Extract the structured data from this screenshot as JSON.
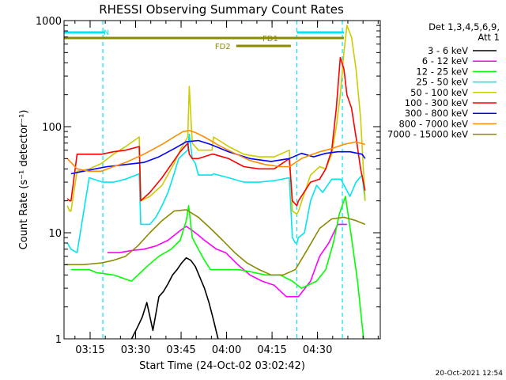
{
  "chart_data": {
    "type": "line",
    "title": "RHESSI Observing Summary Count Rates",
    "xlabel": "Start Time (24-Oct-02 03:02:42)",
    "ylabel": "Count Rate (s⁻¹ detector⁻¹)",
    "yscale": "log",
    "ylim": [
      1,
      1000
    ],
    "xlim_min": [
      3.7,
      108
    ],
    "xticks_min": [
      12.3,
      27.3,
      42.3,
      57.3,
      72.3,
      87.3
    ],
    "xtick_labels": [
      "03:15",
      "03:30",
      "03:45",
      "04:00",
      "04:15",
      "04:30"
    ],
    "yticks": [
      1,
      10,
      100,
      1000
    ],
    "ytick_labels": [
      "1",
      "10",
      "100",
      "1000"
    ],
    "grid": false,
    "legend_header": [
      "Det 1,3,4,5,6,9,",
      "Att 1"
    ],
    "legend_position": "right",
    "footer": "20-Oct-2021 12:54",
    "colors": {
      "night_bar": "#00e5ee",
      "flare_bar": "#8b8b00",
      "dashed": "#00e5ee"
    },
    "markers": {
      "night_label": "N",
      "fd1_label": "FD1",
      "fd2_label": "FD2",
      "night_segments": [
        [
          0,
          17
        ],
        [
          80.5,
          96
        ]
      ],
      "fd1_segment": [
        0,
        96
      ],
      "fd2_segment": [
        60.5,
        78.5
      ],
      "vlines": [
        16.5,
        80.5,
        95.5
      ]
    },
    "series": [
      {
        "name": "3 - 6 keV",
        "color": "#000000",
        "x": [
          26,
          28,
          29.5,
          31,
          33,
          35,
          36.5,
          38,
          39.5,
          41,
          42.5,
          44,
          45.5,
          47,
          48.5,
          50,
          51.5,
          53,
          54.5
        ],
        "y": [
          1,
          1.3,
          1.6,
          2.2,
          1.2,
          2.5,
          2.8,
          3.3,
          4,
          4.5,
          5.2,
          5.8,
          5.5,
          4.8,
          3.8,
          3,
          2.2,
          1.5,
          1
        ]
      },
      {
        "name": "6 - 12 keV",
        "color": "#ff00ff",
        "x": [
          18,
          22,
          26,
          30,
          34,
          38,
          42,
          44,
          46,
          48,
          50,
          54,
          57,
          61,
          65,
          69,
          73,
          77,
          81,
          85,
          88,
          91,
          94,
          97
        ],
        "y": [
          6.5,
          6.5,
          6.8,
          7,
          7.5,
          8.5,
          10.5,
          11.5,
          10.5,
          9.5,
          8.5,
          7,
          6.5,
          5,
          4,
          3.5,
          3.2,
          2.5,
          2.5,
          3.5,
          6,
          8,
          12,
          12
        ]
      },
      {
        "name": "12 - 25 keV",
        "color": "#00ff00",
        "x": [
          6,
          12,
          14.5,
          20,
          26,
          31,
          35,
          39,
          42,
          44,
          44.8,
          46,
          48,
          50,
          52,
          57,
          61,
          65,
          70,
          75,
          79,
          82,
          87,
          90,
          92.5,
          94.5,
          96.5,
          98.5,
          100.5,
          102.5
        ],
        "y": [
          4.5,
          4.5,
          4.2,
          4,
          3.5,
          4.8,
          6,
          7,
          8.5,
          13,
          18,
          9,
          7,
          5.5,
          4.5,
          4.5,
          4.5,
          4.3,
          4,
          4,
          3.5,
          3,
          3.5,
          4.5,
          8,
          15,
          22,
          9,
          3.5,
          1
        ]
      },
      {
        "name": "25 - 50 keV",
        "color": "#00e5ee",
        "x": [
          4.8,
          6,
          8,
          12,
          16.5,
          20,
          24,
          28.5,
          29,
          32,
          34,
          36,
          38,
          40,
          41.5,
          43,
          44.5,
          45,
          46,
          47,
          48,
          52.5,
          53,
          58,
          63,
          68,
          73,
          78,
          79,
          80,
          80.5,
          81,
          83,
          85,
          87,
          89,
          92,
          95,
          98,
          100,
          102,
          103
        ],
        "y": [
          8,
          7,
          6.5,
          33,
          30,
          30,
          32,
          36,
          12,
          12,
          14,
          18,
          24,
          36,
          50,
          55,
          60,
          85,
          50,
          45,
          35,
          35,
          36,
          33,
          30,
          30,
          31,
          33,
          9,
          8,
          8,
          9,
          10,
          20,
          28,
          24,
          32,
          32,
          22,
          30,
          35,
          20
        ]
      },
      {
        "name": "50 - 100 keV",
        "color": "#cccc00",
        "x": [
          4.8,
          5.5,
          6,
          8,
          12,
          16,
          20,
          24,
          28.5,
          29,
          32,
          36,
          40,
          42,
          44.5,
          45,
          46,
          48,
          52.5,
          53,
          58,
          63,
          68,
          73,
          78,
          79,
          80.5,
          81,
          85,
          88,
          90,
          92,
          93.5,
          94.8,
          96,
          97,
          98.5,
          100,
          101.5,
          103
        ],
        "y": [
          18,
          16,
          16,
          38,
          40,
          45,
          55,
          65,
          80,
          20,
          22,
          28,
          45,
          60,
          80,
          240,
          70,
          60,
          60,
          80,
          65,
          55,
          52,
          52,
          60,
          16,
          15,
          16,
          35,
          42,
          40,
          55,
          100,
          200,
          500,
          900,
          700,
          350,
          120,
          20
        ]
      },
      {
        "name": "100 - 300 keV",
        "color": "#ff0000",
        "x": [
          4.8,
          5.5,
          6,
          8,
          12,
          16,
          20,
          24,
          28.5,
          29,
          32,
          36,
          40,
          42,
          44.5,
          45,
          46,
          48,
          52.5,
          53,
          58,
          63,
          68,
          73,
          78,
          79,
          80.5,
          81,
          85,
          88,
          90,
          92,
          93.5,
          94.8,
          96,
          97,
          98.5,
          100,
          101.5,
          103
        ],
        "y": [
          21,
          20,
          20,
          55,
          55,
          55,
          58,
          60,
          65,
          20,
          24,
          33,
          48,
          58,
          70,
          55,
          50,
          50,
          55,
          55,
          50,
          42,
          40,
          40,
          50,
          20,
          18,
          20,
          30,
          32,
          40,
          60,
          150,
          450,
          350,
          200,
          150,
          80,
          40,
          25
        ]
      },
      {
        "name": "300 - 800 keV",
        "color": "#0000ff",
        "x": [
          6,
          10,
          14,
          18,
          24,
          30,
          35,
          40,
          44,
          48,
          52,
          58,
          65,
          72,
          78,
          82,
          86,
          90,
          94,
          98,
          102,
          103
        ],
        "y": [
          36,
          38,
          40,
          42,
          44,
          46,
          52,
          62,
          72,
          74,
          68,
          58,
          50,
          47,
          50,
          56,
          52,
          56,
          58,
          58,
          55,
          50
        ]
      },
      {
        "name": "800 - 7000 keV",
        "color": "#ff8c00",
        "x": [
          4.8,
          8,
          12,
          16,
          20,
          24,
          30,
          36,
          40,
          43,
          45,
          47,
          50,
          55,
          60,
          65,
          70,
          75,
          78,
          82,
          85,
          88,
          92,
          96,
          100,
          103
        ],
        "y": [
          50,
          40,
          38,
          38,
          42,
          46,
          55,
          68,
          80,
          90,
          92,
          88,
          80,
          66,
          56,
          48,
          44,
          42,
          42,
          50,
          54,
          58,
          62,
          68,
          72,
          68
        ]
      },
      {
        "name": "7000 - 15000 keV",
        "color": "#8b8b00",
        "x": [
          4,
          10,
          16,
          20,
          24,
          28,
          32,
          36,
          40,
          44,
          48,
          52,
          56,
          60,
          64,
          68,
          72,
          76,
          80,
          84,
          88,
          92,
          96,
          100,
          103
        ],
        "y": [
          5,
          5,
          5.2,
          5.5,
          6,
          7.5,
          10,
          13,
          16,
          16.5,
          14,
          11,
          8.5,
          6.5,
          5.2,
          4.5,
          4,
          4,
          4.5,
          7,
          11,
          13.5,
          14,
          13,
          12
        ]
      }
    ]
  }
}
